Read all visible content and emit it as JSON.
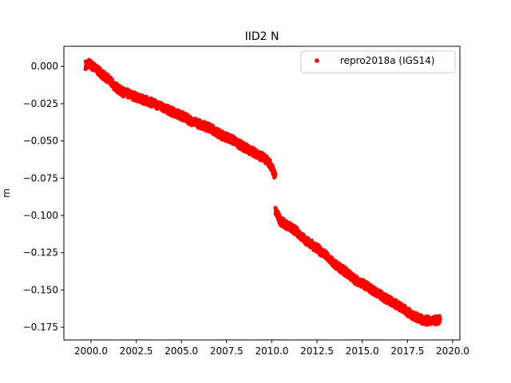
{
  "chart_data": {
    "type": "scatter",
    "title": "IID2 N",
    "xlabel": "",
    "ylabel": "m",
    "xlim": [
      1998.5,
      2020.4
    ],
    "ylim": [
      -0.1835,
      0.0135
    ],
    "xticks": [
      2000.0,
      2002.5,
      2005.0,
      2007.5,
      2010.0,
      2012.5,
      2015.0,
      2017.5,
      2020.0
    ],
    "xtick_labels": [
      "2000.0",
      "2002.5",
      "2005.0",
      "2007.5",
      "2010.0",
      "2012.5",
      "2015.0",
      "2017.5",
      "2020.0"
    ],
    "yticks": [
      0.0,
      -0.025,
      -0.05,
      -0.075,
      -0.1,
      -0.125,
      -0.15,
      -0.175
    ],
    "ytick_labels": [
      "0.000",
      "−0.025",
      "−0.050",
      "−0.075",
      "−0.100",
      "−0.125",
      "−0.150",
      "−0.175"
    ],
    "grid": false,
    "legend_position": "top-right",
    "series": [
      {
        "name": "repro2018a (IGS14)",
        "color": "#ff0000",
        "marker": "dot",
        "x": [
          1999.7,
          1999.9,
          2000.1,
          2000.9,
          2001.3,
          2001.7,
          2002.2,
          2002.8,
          2003.3,
          2003.9,
          2004.4,
          2005.0,
          2005.6,
          2006.1,
          2006.7,
          2007.2,
          2007.8,
          2008.3,
          2008.9,
          2009.5,
          2009.9,
          2010.2,
          2010.2,
          2010.5,
          2010.9,
          2011.4,
          2011.9,
          2012.5,
          2013.0,
          2013.5,
          2014.1,
          2014.6,
          2015.2,
          2015.7,
          2016.2,
          2016.8,
          2017.3,
          2017.8,
          2018.3,
          2018.8,
          2019.3
        ],
        "y": [
          0.001,
          0.002,
          0.0,
          -0.008,
          -0.013,
          -0.017,
          -0.019,
          -0.022,
          -0.024,
          -0.027,
          -0.03,
          -0.033,
          -0.037,
          -0.039,
          -0.042,
          -0.046,
          -0.049,
          -0.053,
          -0.057,
          -0.061,
          -0.065,
          -0.074,
          -0.097,
          -0.104,
          -0.107,
          -0.111,
          -0.117,
          -0.122,
          -0.127,
          -0.133,
          -0.138,
          -0.143,
          -0.147,
          -0.151,
          -0.155,
          -0.159,
          -0.163,
          -0.167,
          -0.17,
          -0.171,
          -0.17
        ]
      }
    ]
  }
}
